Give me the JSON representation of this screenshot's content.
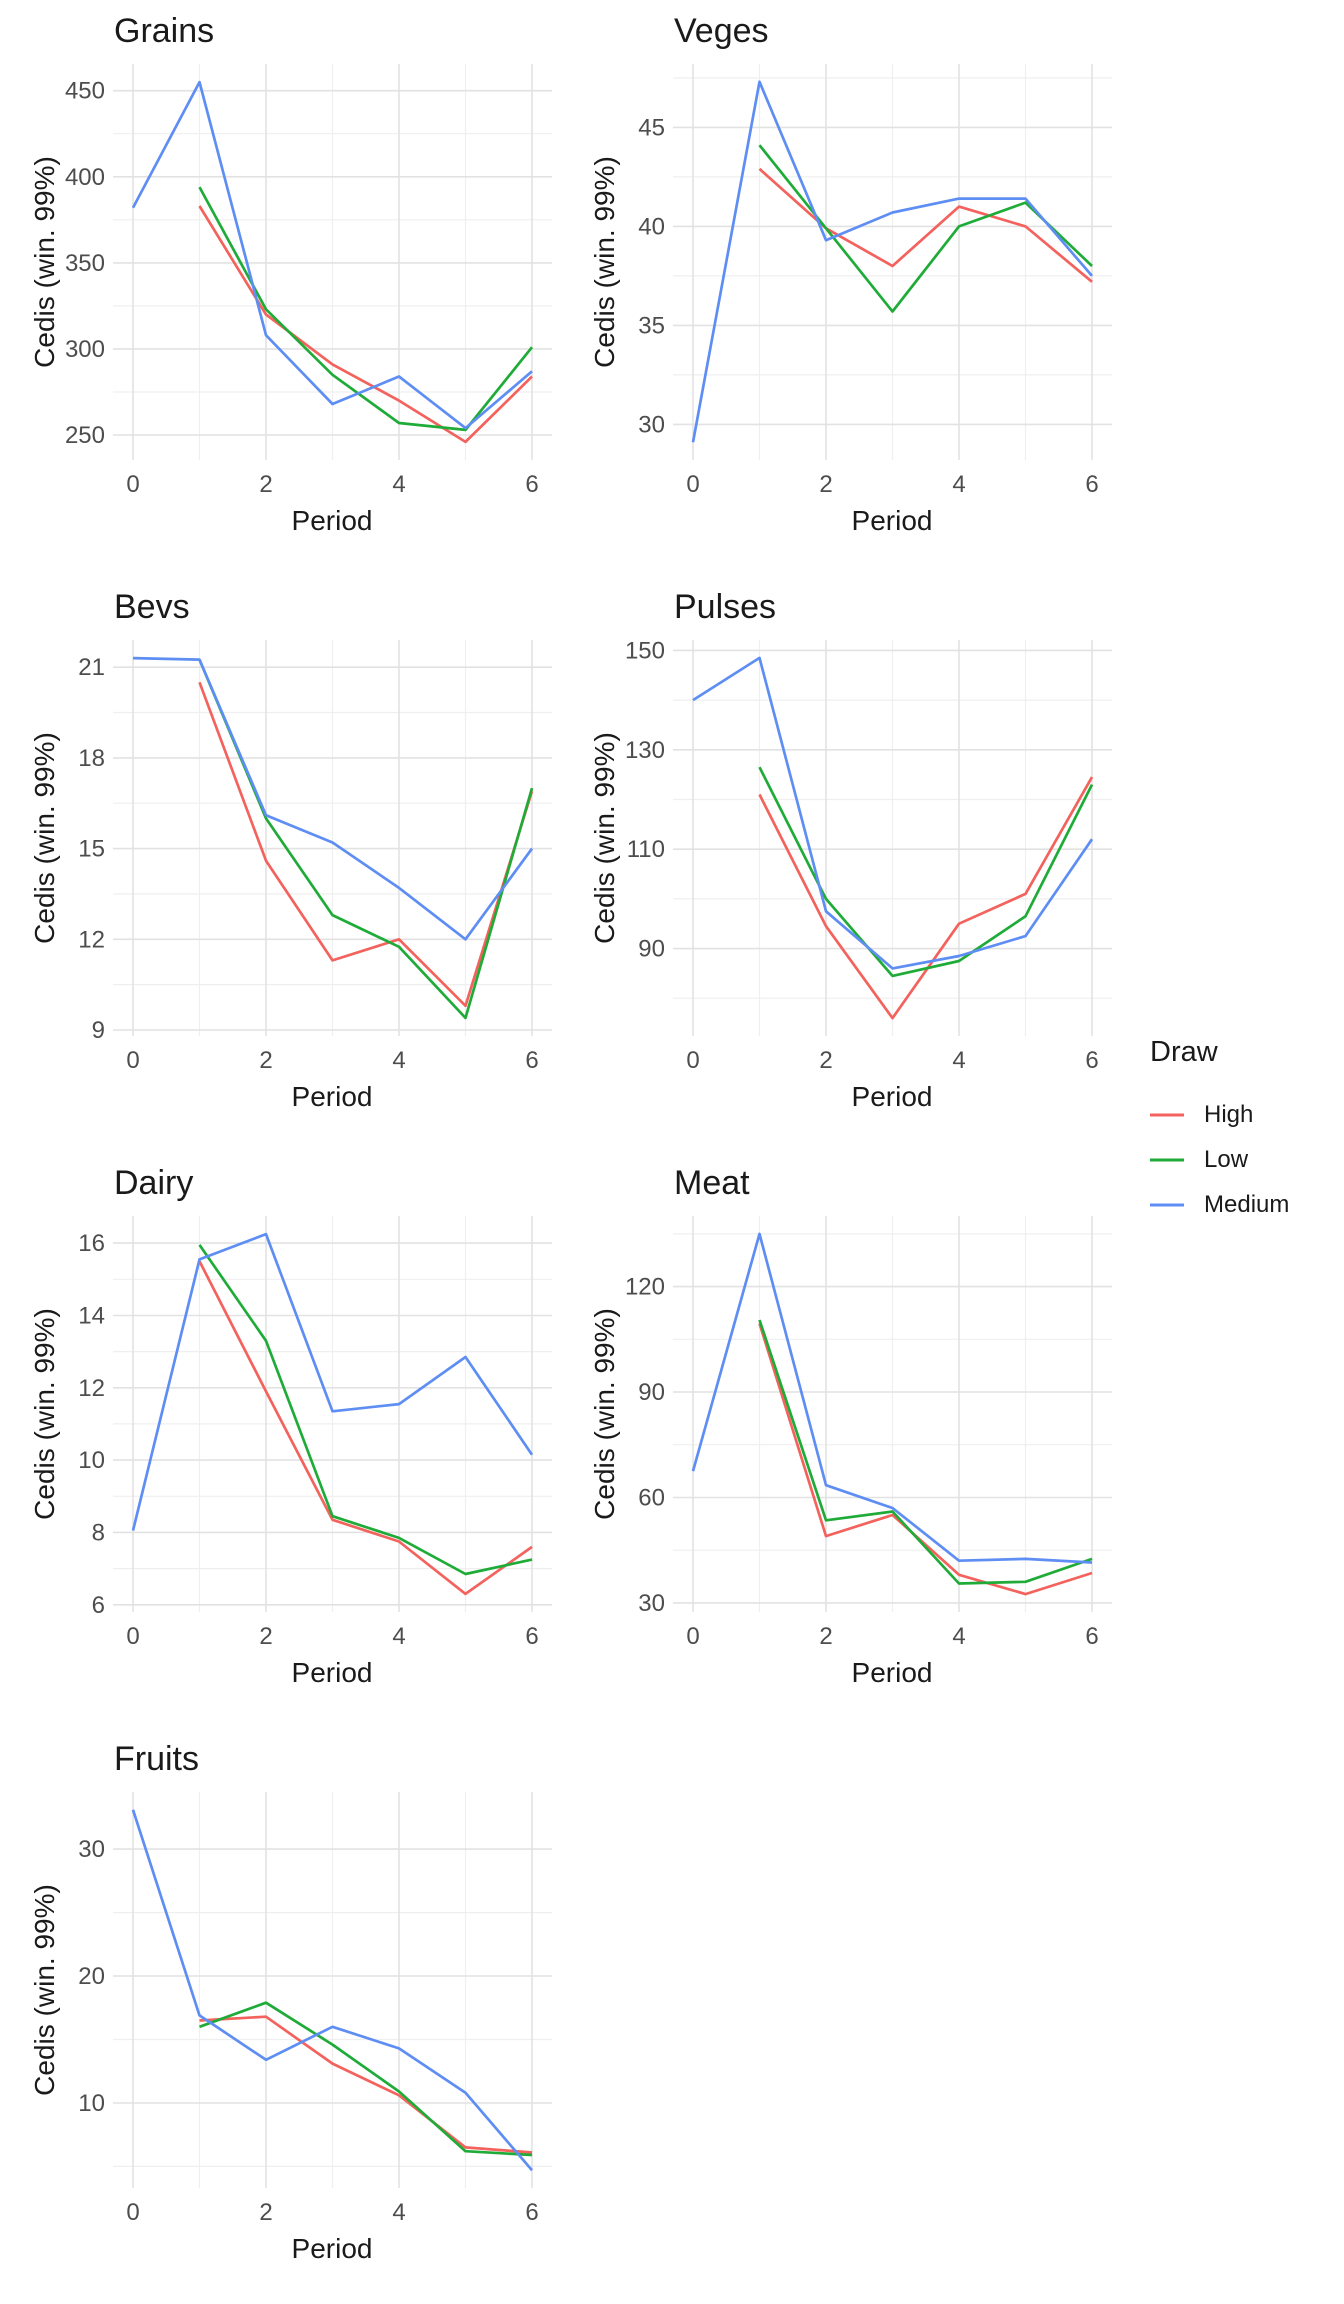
{
  "figure": {
    "background": "#ffffff",
    "grid_major_color": "#e2e2e2",
    "grid_minor_color": "#efefef",
    "tick_text_color": "#4d4d4d",
    "title_text_color": "#1a1a1a"
  },
  "legend": {
    "title": "Draw",
    "items": [
      {
        "label": "High",
        "color": "#f3625d"
      },
      {
        "label": "Low",
        "color": "#1fab38"
      },
      {
        "label": "Medium",
        "color": "#5e8ef3"
      }
    ]
  },
  "chart_data": [
    {
      "type": "line",
      "title": "Grains",
      "xlabel": "Period",
      "ylabel": "Cedis (win. 99%)",
      "xlim": [
        -0.3,
        6.3
      ],
      "x_ticks": [
        0,
        2,
        4,
        6
      ],
      "x_minor": [
        1,
        3,
        5
      ],
      "ylim": [
        235.5,
        465.5
      ],
      "y_ticks": [
        250,
        300,
        350,
        400,
        450
      ],
      "series": [
        {
          "name": "High",
          "color": "#f3625d",
          "x": [
            1,
            2,
            3,
            4,
            5,
            6
          ],
          "values": [
            383,
            320,
            291,
            270,
            246,
            284
          ]
        },
        {
          "name": "Low",
          "color": "#1fab38",
          "x": [
            1,
            2,
            3,
            4,
            5,
            6
          ],
          "values": [
            394,
            323,
            285,
            257,
            253,
            301
          ]
        },
        {
          "name": "Medium",
          "color": "#5e8ef3",
          "x": [
            0,
            1,
            2,
            3,
            4,
            5,
            6
          ],
          "values": [
            382,
            455,
            308,
            268,
            284,
            254,
            287
          ]
        }
      ]
    },
    {
      "type": "line",
      "title": "Veges",
      "xlabel": "Period",
      "ylabel": "Cedis (win. 99%)",
      "xlim": [
        -0.3,
        6.3
      ],
      "x_ticks": [
        0,
        2,
        4,
        6
      ],
      "x_minor": [
        1,
        3,
        5
      ],
      "ylim": [
        28.2,
        48.2
      ],
      "y_ticks": [
        30,
        35,
        40,
        45
      ],
      "series": [
        {
          "name": "High",
          "color": "#f3625d",
          "x": [
            1,
            2,
            3,
            4,
            5,
            6
          ],
          "values": [
            42.9,
            39.9,
            38.0,
            41.0,
            40.0,
            37.2
          ]
        },
        {
          "name": "Low",
          "color": "#1fab38",
          "x": [
            1,
            2,
            3,
            4,
            5,
            6
          ],
          "values": [
            44.1,
            39.9,
            35.7,
            40.0,
            41.2,
            38.0
          ]
        },
        {
          "name": "Medium",
          "color": "#5e8ef3",
          "x": [
            0,
            1,
            2,
            3,
            4,
            5,
            6
          ],
          "values": [
            29.1,
            47.3,
            39.3,
            40.7,
            41.4,
            41.4,
            37.5
          ]
        }
      ]
    },
    {
      "type": "line",
      "title": "Bevs",
      "xlabel": "Period",
      "ylabel": "Cedis (win. 99%)",
      "xlim": [
        -0.3,
        6.3
      ],
      "x_ticks": [
        0,
        2,
        4,
        6
      ],
      "x_minor": [
        1,
        3,
        5
      ],
      "ylim": [
        8.8,
        21.9
      ],
      "y_ticks": [
        9,
        12,
        15,
        18,
        21
      ],
      "series": [
        {
          "name": "High",
          "color": "#f3625d",
          "x": [
            1,
            2,
            3,
            4,
            5,
            6
          ],
          "values": [
            20.5,
            14.6,
            11.3,
            12.0,
            9.8,
            16.9
          ]
        },
        {
          "name": "Low",
          "color": "#1fab38",
          "x": [
            1,
            2,
            3,
            4,
            5,
            6
          ],
          "values": [
            21.25,
            16.0,
            12.8,
            11.75,
            9.4,
            17.0
          ]
        },
        {
          "name": "Medium",
          "color": "#5e8ef3",
          "x": [
            0,
            1,
            2,
            3,
            4,
            5,
            6
          ],
          "values": [
            21.3,
            21.25,
            16.1,
            15.2,
            13.7,
            12.0,
            15.0
          ]
        }
      ]
    },
    {
      "type": "line",
      "title": "Pulses",
      "xlabel": "Period",
      "ylabel": "Cedis (win. 99%)",
      "xlim": [
        -0.3,
        6.3
      ],
      "x_ticks": [
        0,
        2,
        4,
        6
      ],
      "x_minor": [
        1,
        3,
        5
      ],
      "ylim": [
        72.4,
        152.1
      ],
      "y_ticks": [
        90,
        110,
        130,
        150
      ],
      "series": [
        {
          "name": "High",
          "color": "#f3625d",
          "x": [
            1,
            2,
            3,
            4,
            5,
            6
          ],
          "values": [
            121,
            94.5,
            76,
            95,
            101,
            124.5
          ]
        },
        {
          "name": "Low",
          "color": "#1fab38",
          "x": [
            1,
            2,
            3,
            4,
            5,
            6
          ],
          "values": [
            126.5,
            100,
            84.5,
            87.5,
            96.5,
            123
          ]
        },
        {
          "name": "Medium",
          "color": "#5e8ef3",
          "x": [
            0,
            1,
            2,
            3,
            4,
            5,
            6
          ],
          "values": [
            140,
            148.5,
            97.5,
            86,
            88.5,
            92.5,
            112
          ]
        }
      ]
    },
    {
      "type": "line",
      "title": "Dairy",
      "xlabel": "Period",
      "ylabel": "Cedis (win. 99%)",
      "xlim": [
        -0.3,
        6.3
      ],
      "x_ticks": [
        0,
        2,
        4,
        6
      ],
      "x_minor": [
        1,
        3,
        5
      ],
      "ylim": [
        5.8,
        16.75
      ],
      "y_ticks": [
        6,
        8,
        10,
        12,
        14,
        16
      ],
      "series": [
        {
          "name": "High",
          "color": "#f3625d",
          "x": [
            1,
            2,
            3,
            4,
            5,
            6
          ],
          "values": [
            15.5,
            11.9,
            8.35,
            7.75,
            6.3,
            7.6
          ]
        },
        {
          "name": "Low",
          "color": "#1fab38",
          "x": [
            1,
            2,
            3,
            4,
            5,
            6
          ],
          "values": [
            15.95,
            13.3,
            8.45,
            7.85,
            6.85,
            7.25
          ]
        },
        {
          "name": "Medium",
          "color": "#5e8ef3",
          "x": [
            0,
            1,
            2,
            3,
            4,
            5,
            6
          ],
          "values": [
            8.05,
            15.55,
            16.25,
            11.35,
            11.55,
            12.85,
            10.15
          ]
        }
      ]
    },
    {
      "type": "line",
      "title": "Meat",
      "xlabel": "Period",
      "ylabel": "Cedis (win. 99%)",
      "xlim": [
        -0.3,
        6.3
      ],
      "x_ticks": [
        0,
        2,
        4,
        6
      ],
      "x_minor": [
        1,
        3,
        5
      ],
      "ylim": [
        27.4,
        140.1
      ],
      "y_ticks": [
        30,
        60,
        90,
        120
      ],
      "series": [
        {
          "name": "High",
          "color": "#f3625d",
          "x": [
            1,
            2,
            3,
            4,
            5,
            6
          ],
          "values": [
            109.5,
            49,
            55,
            38,
            32.5,
            38.5
          ]
        },
        {
          "name": "Low",
          "color": "#1fab38",
          "x": [
            1,
            2,
            3,
            4,
            5,
            6
          ],
          "values": [
            110.5,
            53.5,
            56,
            35.5,
            36,
            42.5
          ]
        },
        {
          "name": "Medium",
          "color": "#5e8ef3",
          "x": [
            0,
            1,
            2,
            3,
            4,
            5,
            6
          ],
          "values": [
            67.5,
            135,
            63.5,
            57,
            42,
            42.5,
            41.5
          ]
        }
      ]
    },
    {
      "type": "line",
      "title": "Fruits",
      "xlabel": "Period",
      "ylabel": "Cedis (win. 99%)",
      "xlim": [
        -0.3,
        6.3
      ],
      "x_ticks": [
        0,
        2,
        4,
        6
      ],
      "x_minor": [
        1,
        3,
        5
      ],
      "ylim": [
        3.3,
        34.5
      ],
      "y_ticks": [
        10,
        20,
        30
      ],
      "series": [
        {
          "name": "High",
          "color": "#f3625d",
          "x": [
            1,
            2,
            3,
            4,
            5,
            6
          ],
          "values": [
            16.5,
            16.8,
            13.1,
            10.6,
            6.5,
            6.1
          ]
        },
        {
          "name": "Low",
          "color": "#1fab38",
          "x": [
            1,
            2,
            3,
            4,
            5,
            6
          ],
          "values": [
            16.0,
            17.9,
            14.6,
            10.9,
            6.2,
            5.9
          ]
        },
        {
          "name": "Medium",
          "color": "#5e8ef3",
          "x": [
            0,
            1,
            2,
            3,
            4,
            5,
            6
          ],
          "values": [
            33.1,
            16.9,
            13.4,
            16.0,
            14.3,
            10.8,
            4.7
          ]
        }
      ]
    }
  ]
}
